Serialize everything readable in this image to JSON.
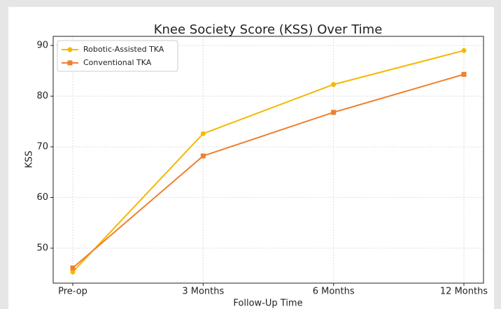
{
  "chart_data": {
    "type": "line",
    "title": "Knee Society Score (KSS) Over Time",
    "x_label": "Follow-Up Time",
    "y_label": "KSS",
    "categories": [
      "Pre-op",
      "3 Months",
      "6 Months",
      "12 Months"
    ],
    "series": [
      {
        "name": "Robotic-Assisted TKA",
        "color": "#f5b800",
        "marker": "circle",
        "values": [
          45.3,
          72.6,
          82.3,
          89.0
        ]
      },
      {
        "name": "Conventional TKA",
        "color": "#f07f2d",
        "marker": "square",
        "values": [
          46.1,
          68.2,
          76.8,
          84.3
        ]
      }
    ],
    "ylim": [
      43.1,
      91.8
    ],
    "yticks": [
      50,
      60,
      70,
      80,
      90
    ],
    "grid": true,
    "legend": "upper left"
  }
}
